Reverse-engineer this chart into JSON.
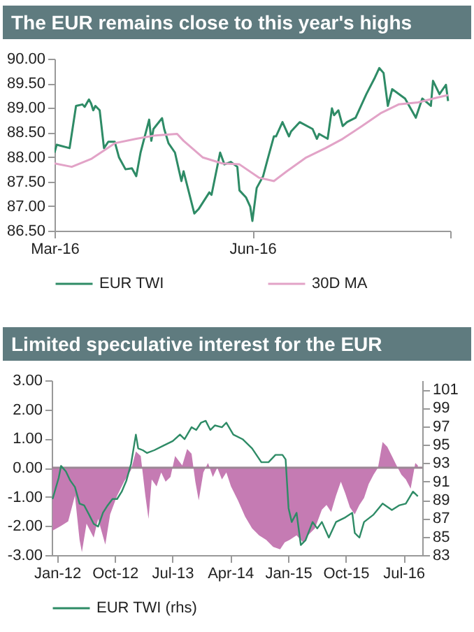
{
  "chart_data": [
    {
      "type": "line",
      "title": "The EUR remains close to this year's highs",
      "legend": "bottom",
      "xlim": [
        "2016-03-01",
        "2016-09-01"
      ],
      "xticks": [
        {
          "value": "2016-03-01",
          "label": "Mar-16"
        },
        {
          "value": "2016-06-01",
          "label": "Jun-16"
        },
        {
          "value": "2016-09-01",
          "label": null
        }
      ],
      "ylim": [
        86.5,
        90
      ],
      "yticks": [
        {
          "value": 86.5,
          "label": "86.50"
        },
        {
          "value": 87,
          "label": "87.00"
        },
        {
          "value": 87.5,
          "label": "87.50"
        },
        {
          "value": 88,
          "label": "88.00"
        },
        {
          "value": 88.5,
          "label": "88.50"
        },
        {
          "value": 89,
          "label": "89.00"
        },
        {
          "value": 89.5,
          "label": "89.50"
        },
        {
          "value": 90,
          "label": "90.00"
        }
      ],
      "series": [
        {
          "name": "EUR TWI",
          "color": "#2e8b66",
          "x": [
            "2016-03-01",
            "2016-03-02",
            "2016-03-08",
            "2016-03-11",
            "2016-03-14",
            "2016-03-15",
            "2016-03-17",
            "2016-03-18",
            "2016-03-19",
            "2016-03-20",
            "2016-03-22",
            "2016-03-24",
            "2016-03-26",
            "2016-03-29",
            "2016-03-31",
            "2016-04-03",
            "2016-04-06",
            "2016-04-08",
            "2016-04-10",
            "2016-04-14",
            "2016-04-15",
            "2016-04-16",
            "2016-04-20",
            "2016-04-21",
            "2016-04-23",
            "2016-04-26",
            "2016-04-29",
            "2016-04-30",
            "2016-05-05",
            "2016-05-07",
            "2016-05-12",
            "2016-05-13",
            "2016-05-17",
            "2016-05-19",
            "2016-05-22",
            "2016-05-25",
            "2016-05-26",
            "2016-05-29",
            "2016-05-31",
            "2016-06-01",
            "2016-06-03",
            "2016-06-06",
            "2016-06-08",
            "2016-06-11",
            "2016-06-12",
            "2016-06-15",
            "2016-06-18",
            "2016-06-19",
            "2016-06-23",
            "2016-06-29",
            "2016-07-01",
            "2016-07-02",
            "2016-07-06",
            "2016-07-08",
            "2016-07-09",
            "2016-07-11",
            "2016-07-13",
            "2016-07-15",
            "2016-07-19",
            "2016-07-24",
            "2016-07-28",
            "2016-07-30",
            "2016-08-01",
            "2016-08-03",
            "2016-08-05",
            "2016-08-11",
            "2016-08-16",
            "2016-08-19",
            "2016-08-23",
            "2016-08-24",
            "2016-08-27",
            "2016-08-30",
            "2016-08-31"
          ],
          "values": [
            88.09,
            88.25,
            88.18,
            89.04,
            89.07,
            89.02,
            89.17,
            89.09,
            88.95,
            89.04,
            88.95,
            88.18,
            88.31,
            88.31,
            87.99,
            87.75,
            87.77,
            87.61,
            88.09,
            88.76,
            88.33,
            88.57,
            88.79,
            88.57,
            88.28,
            88.09,
            87.51,
            87.71,
            86.85,
            86.94,
            87.28,
            87.23,
            88.09,
            87.85,
            87.9,
            87.8,
            87.32,
            87.18,
            86.99,
            86.7,
            87.37,
            87.61,
            87.94,
            88.42,
            88.42,
            88.71,
            88.42,
            88.52,
            88.71,
            88.57,
            88.37,
            88.47,
            88.37,
            88.99,
            88.85,
            88.95,
            88.63,
            88.71,
            88.8,
            89.28,
            89.62,
            89.81,
            89.71,
            89.04,
            89.38,
            89.19,
            88.8,
            89.19,
            89.04,
            89.55,
            89.28,
            89.47,
            89.14
          ]
        },
        {
          "name": "30D MA",
          "color": "#e2a3c7",
          "x": [
            "2016-03-01",
            "2016-03-09",
            "2016-03-18",
            "2016-03-29",
            "2016-04-08",
            "2016-04-17",
            "2016-04-27",
            "2016-04-30",
            "2016-05-09",
            "2016-05-18",
            "2016-05-26",
            "2016-06-04",
            "2016-06-11",
            "2016-06-17",
            "2016-06-26",
            "2016-07-05",
            "2016-07-13",
            "2016-07-22",
            "2016-07-31",
            "2016-08-08",
            "2016-08-17",
            "2016-08-26",
            "2016-08-31"
          ],
          "values": [
            87.87,
            87.8,
            87.96,
            88.28,
            88.37,
            88.44,
            88.47,
            88.33,
            87.99,
            87.87,
            87.85,
            87.58,
            87.51,
            87.71,
            87.99,
            88.18,
            88.37,
            88.63,
            88.9,
            89.07,
            89.11,
            89.21,
            89.26
          ]
        }
      ]
    },
    {
      "type": "line",
      "title": "Limited speculative interest for the EUR",
      "legend": "bottom",
      "xlim": [
        "2011-12-07",
        "2016-09-28"
      ],
      "xticks": [
        {
          "value": "2012-01-01",
          "label": "Jan-12"
        },
        {
          "value": "2012-10-01",
          "label": "Oct-12"
        },
        {
          "value": "2013-07-01",
          "label": "Jul-13"
        },
        {
          "value": "2014-04-01",
          "label": "Apr-14"
        },
        {
          "value": "2015-01-01",
          "label": "Jan-15"
        },
        {
          "value": "2015-10-01",
          "label": "Oct-15"
        },
        {
          "value": "2016-07-01",
          "label": "Jul-16"
        }
      ],
      "ylim": [
        -3,
        3
      ],
      "yticks": [
        {
          "value": -3,
          "label": "-3.00"
        },
        {
          "value": -2,
          "label": "-2.00"
        },
        {
          "value": -1,
          "label": "-1.00"
        },
        {
          "value": 0,
          "label": "0.00"
        },
        {
          "value": 1,
          "label": "1.00"
        },
        {
          "value": 2,
          "label": "2.00"
        },
        {
          "value": 3,
          "label": "3.00"
        }
      ],
      "y2lim": [
        83,
        102
      ],
      "y2ticks": [
        83,
        85,
        87,
        89,
        91,
        93,
        95,
        97,
        99,
        101
      ],
      "ref_lines": [
        {
          "axis": "y",
          "value": 0,
          "color": "#9c8795"
        }
      ],
      "series": [
        {
          "type": "area",
          "color": "#c57bb3",
          "x": [
            "2011-12-11",
            "2012-01-20",
            "2012-02-23",
            "2012-03-26",
            "2012-04-17",
            "2012-04-28",
            "2012-05-20",
            "2012-06-23",
            "2012-07-14",
            "2012-08-17",
            "2012-09-09",
            "2012-10-12",
            "2012-11-14",
            "2012-12-17",
            "2013-01-09",
            "2013-02-01",
            "2013-02-23",
            "2013-03-10",
            "2013-03-25",
            "2013-04-17",
            "2013-05-09",
            "2013-05-30",
            "2013-06-22",
            "2013-07-14",
            "2013-08-17",
            "2013-09-09",
            "2013-09-30",
            "2013-10-18",
            "2013-11-03",
            "2013-11-25",
            "2013-12-17",
            "2014-01-09",
            "2014-01-30",
            "2014-02-21",
            "2014-03-14",
            "2014-04-05",
            "2014-05-08",
            "2014-06-11",
            "2014-07-14",
            "2014-08-16",
            "2014-09-19",
            "2014-10-22",
            "2014-11-24",
            "2014-12-16",
            "2015-01-08",
            "2015-02-10",
            "2015-03-13",
            "2015-04-05",
            "2015-05-08",
            "2015-06-10",
            "2015-07-02",
            "2015-07-24",
            "2015-08-16",
            "2015-09-08",
            "2015-09-29",
            "2015-10-21",
            "2015-11-13",
            "2015-12-05",
            "2015-12-27",
            "2016-01-18",
            "2016-02-10",
            "2016-03-02",
            "2016-03-24",
            "2016-04-15",
            "2016-05-07",
            "2016-05-29",
            "2016-06-21",
            "2016-07-12",
            "2016-08-04",
            "2016-08-26",
            "2016-09-07"
          ],
          "values": [
            -2.16,
            -2.0,
            -1.84,
            -0.96,
            -2.48,
            -2.9,
            -1.92,
            -2.4,
            -1.76,
            -2.64,
            -1.6,
            -0.96,
            -0.48,
            -0.08,
            0.56,
            0.4,
            -0.96,
            -1.76,
            -0.4,
            -0.64,
            -0.16,
            -0.48,
            -0.32,
            0.4,
            0.08,
            0.64,
            0.48,
            -0.48,
            -1.12,
            -0.16,
            0.16,
            -0.32,
            0,
            -0.4,
            -0.16,
            -0.64,
            -1.12,
            -1.68,
            -2.08,
            -2.32,
            -2.48,
            -2.72,
            -2.8,
            -2.56,
            -2.48,
            -2.32,
            -2.56,
            -2.32,
            -2.08,
            -1.44,
            -1.28,
            -1.52,
            -0.96,
            -0.48,
            -0.88,
            -1.36,
            -1.6,
            -1.28,
            -1.04,
            -0.56,
            -0.24,
            0,
            0.88,
            0.72,
            0.4,
            0.08,
            -0.24,
            -0.4,
            -0.72,
            0.16,
            0.08
          ]
        },
        {
          "name": "EUR TWI (rhs)",
          "axis": "y2",
          "color": "#2e8b66",
          "x": [
            "2011-12-11",
            "2012-01-09",
            "2012-01-20",
            "2012-02-12",
            "2012-03-04",
            "2012-03-26",
            "2012-04-17",
            "2012-05-09",
            "2012-06-01",
            "2012-06-23",
            "2012-07-14",
            "2012-08-06",
            "2012-08-28",
            "2012-09-20",
            "2012-10-12",
            "2012-11-03",
            "2012-11-25",
            "2012-12-17",
            "2013-01-09",
            "2013-01-20",
            "2013-02-11",
            "2013-03-03",
            "2013-04-06",
            "2013-05-20",
            "2013-07-03",
            "2013-08-06",
            "2013-08-28",
            "2013-09-30",
            "2013-10-22",
            "2013-11-14",
            "2013-12-06",
            "2013-12-28",
            "2014-01-19",
            "2014-02-21",
            "2014-03-14",
            "2014-04-16",
            "2014-05-30",
            "2014-07-14",
            "2014-08-27",
            "2014-09-30",
            "2014-11-02",
            "2014-12-05",
            "2014-12-20",
            "2015-01-03",
            "2015-01-18",
            "2015-02-10",
            "2015-03-02",
            "2015-03-24",
            "2015-04-27",
            "2015-05-19",
            "2015-06-10",
            "2015-07-13",
            "2015-08-16",
            "2015-09-29",
            "2015-11-01",
            "2015-11-13",
            "2015-12-05",
            "2015-12-27",
            "2016-02-10",
            "2016-03-24",
            "2016-05-07",
            "2016-06-10",
            "2016-07-12",
            "2016-08-15",
            "2016-09-07"
          ],
          "values": [
            89.1,
            91.4,
            92.7,
            92.1,
            91.1,
            90.4,
            88.6,
            88.4,
            87.4,
            86.4,
            86.1,
            87.6,
            88.4,
            89.1,
            89.1,
            89.9,
            91.1,
            92.9,
            96.1,
            94.6,
            94.4,
            94.1,
            94.4,
            94.9,
            95.4,
            96.1,
            95.6,
            96.9,
            96.6,
            97.4,
            97.6,
            96.6,
            97.1,
            96.9,
            97.4,
            96.1,
            95.6,
            94.6,
            93.1,
            93.1,
            93.9,
            93.9,
            93.4,
            88.1,
            86.6,
            87.6,
            84.1,
            84.6,
            86.6,
            85.9,
            86.6,
            84.9,
            86.6,
            87.1,
            87.6,
            85.4,
            84.9,
            86.6,
            87.4,
            88.6,
            87.9,
            88.4,
            88.6,
            89.9,
            89.4
          ]
        }
      ]
    }
  ]
}
